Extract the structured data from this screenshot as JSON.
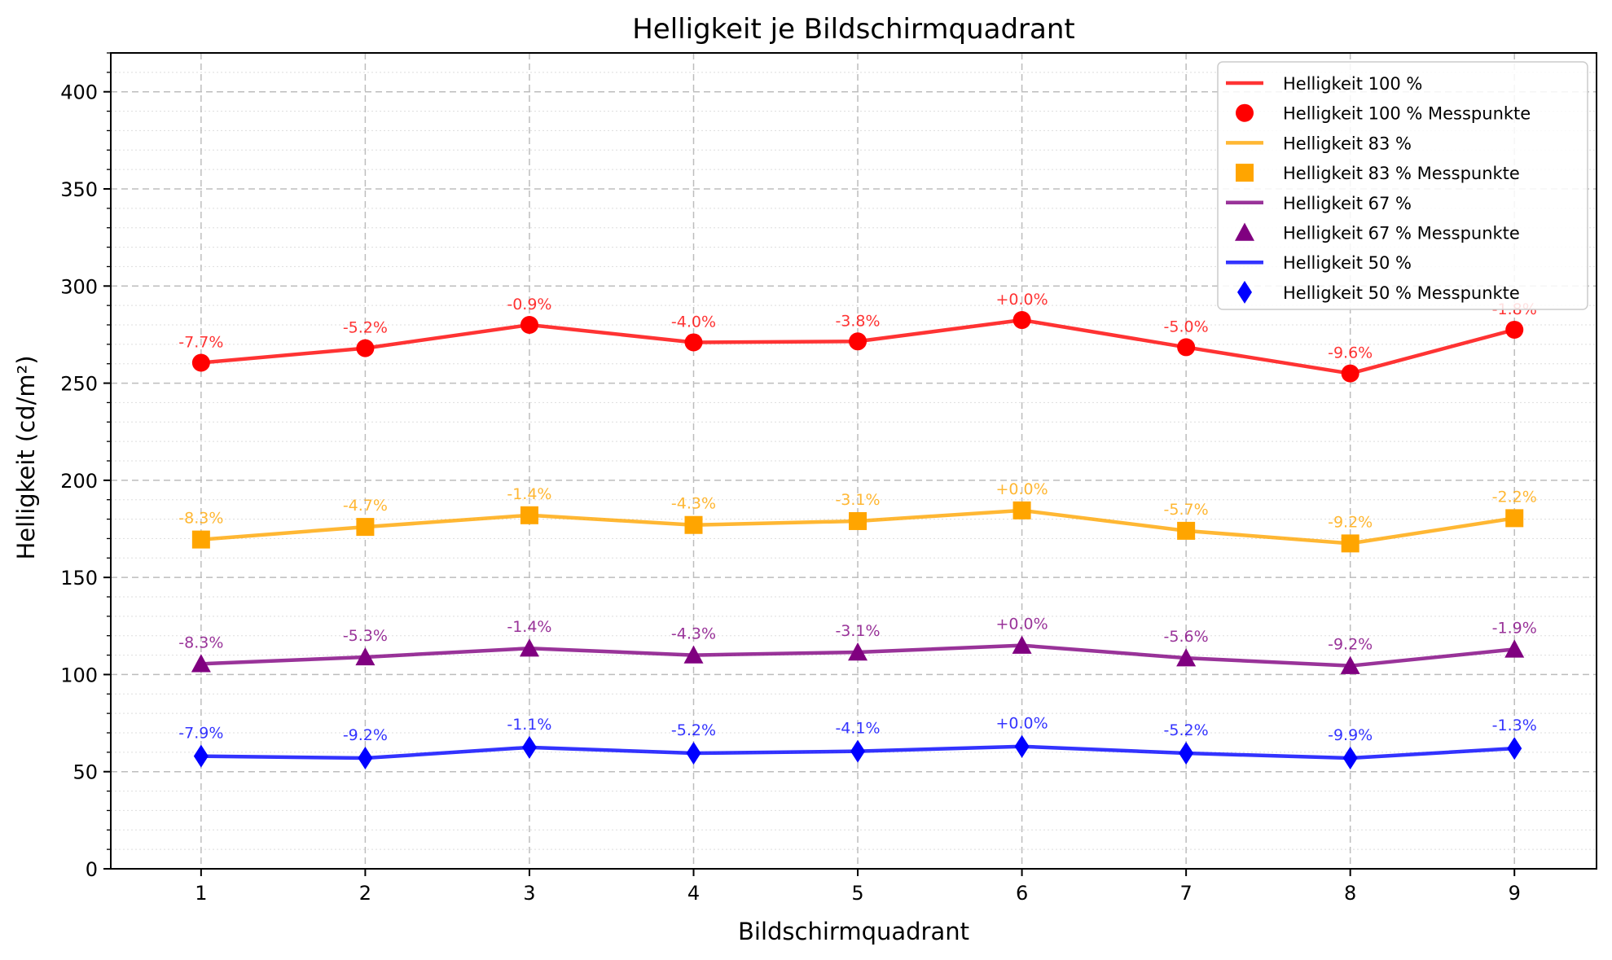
{
  "chart_data": {
    "type": "line",
    "title": "Helligkeit je Bildschirmquadrant",
    "xlabel": "Bildschirmquadrant",
    "ylabel": "Helligkeit (cd/m²)",
    "x": [
      1,
      2,
      3,
      4,
      5,
      6,
      7,
      8,
      9
    ],
    "xlim": [
      0.45,
      9.5
    ],
    "ylim": [
      0,
      420
    ],
    "y_ticks": [
      0,
      50,
      100,
      150,
      200,
      250,
      300,
      350,
      400
    ],
    "grid": true,
    "legend_position": "top-right",
    "series": [
      {
        "name": "Helligkeit 100 %",
        "marker_legend": "Helligkeit 100 % Messpunkte",
        "color": "#ff0000",
        "marker": "circle",
        "values": [
          260.5,
          268,
          280,
          271,
          271.5,
          282.5,
          268.5,
          255,
          277.5
        ],
        "labels": [
          "-7.7%",
          "-5.2%",
          "-0.9%",
          "-4.0%",
          "-3.8%",
          "+0.0%",
          "-5.0%",
          "-9.6%",
          "-1.8%"
        ]
      },
      {
        "name": "Helligkeit 83 %",
        "marker_legend": "Helligkeit 83 % Messpunkte",
        "color": "#ffa500",
        "marker": "square",
        "values": [
          169.5,
          176,
          182,
          177,
          179,
          184.5,
          174,
          167.5,
          180.5
        ],
        "labels": [
          "-8.3%",
          "-4.7%",
          "-1.4%",
          "-4.3%",
          "-3.1%",
          "+0.0%",
          "-5.7%",
          "-9.2%",
          "-2.2%"
        ]
      },
      {
        "name": "Helligkeit 67 %",
        "marker_legend": "Helligkeit 67 % Messpunkte",
        "color": "#800080",
        "marker": "triangle",
        "values": [
          105.5,
          109,
          113.5,
          110,
          111.5,
          115,
          108.5,
          104.5,
          113
        ],
        "labels": [
          "-8.3%",
          "-5.3%",
          "-1.4%",
          "-4.3%",
          "-3.1%",
          "+0.0%",
          "-5.6%",
          "-9.2%",
          "-1.9%"
        ]
      },
      {
        "name": "Helligkeit 50 %",
        "marker_legend": "Helligkeit 50 % Messpunkte",
        "color": "#0000ff",
        "marker": "diamond",
        "values": [
          58,
          57,
          62.5,
          59.5,
          60.5,
          63,
          59.5,
          57,
          62
        ],
        "labels": [
          "-7.9%",
          "-9.2%",
          "-1.1%",
          "-5.2%",
          "-4.1%",
          "+0.0%",
          "-5.2%",
          "-9.9%",
          "-1.3%"
        ]
      }
    ]
  }
}
